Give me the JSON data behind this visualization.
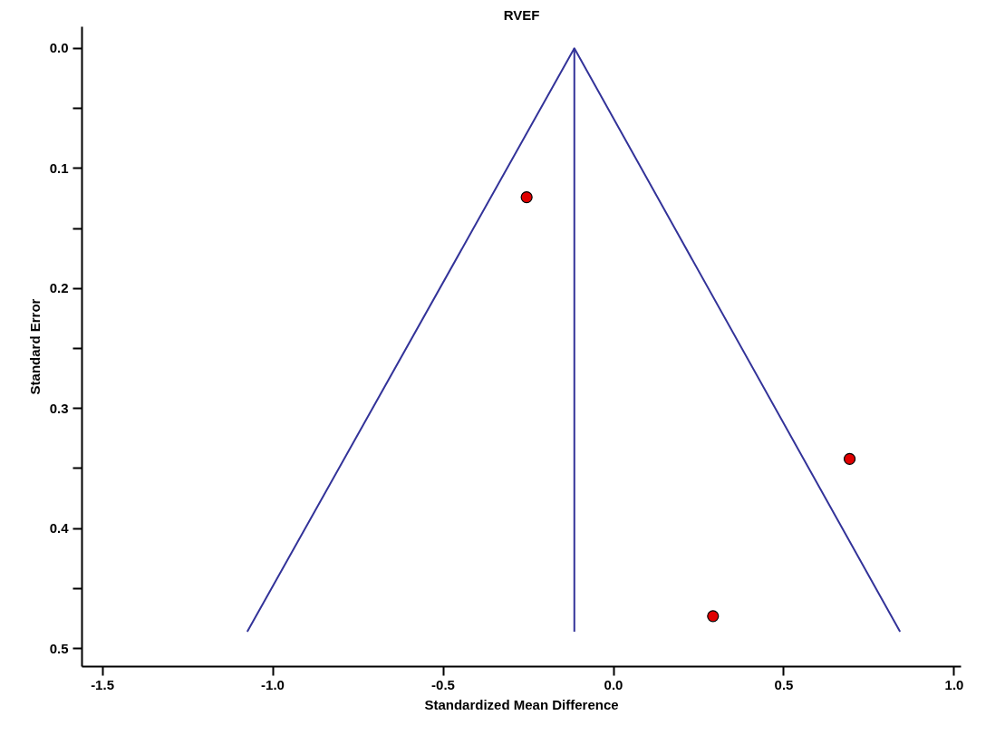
{
  "chart_data": {
    "type": "scatter",
    "title": "RVEF",
    "xlabel": "Standardized Mean Difference",
    "ylabel": "Standard Error",
    "xlim": [
      -1.56,
      1.02
    ],
    "ylim": [
      0.515,
      -0.018
    ],
    "xticks": [
      {
        "value": -1.5,
        "label": "-1.5"
      },
      {
        "value": -1.0,
        "label": "-1.0"
      },
      {
        "value": -0.5,
        "label": "-0.5"
      },
      {
        "value": 0,
        "label": "0.0"
      },
      0.5,
      {
        "value": 1.0,
        "label": "1.0"
      }
    ],
    "yticks": [
      {
        "value": 0,
        "label": "0.0"
      },
      {
        "value": 0.05,
        "label": null
      },
      0.1,
      {
        "value": 0.15,
        "label": null
      },
      0.2,
      {
        "value": 0.25,
        "label": null
      },
      0.3,
      {
        "value": 0.35,
        "label": null
      },
      0.4,
      {
        "value": 0.45,
        "label": null
      },
      0.5
    ],
    "grid": false,
    "series": [
      {
        "type": "line",
        "color": "#333399",
        "marker": "none",
        "line_style": "solid",
        "x": [
          -1.075,
          -0.115,
          0.841
        ],
        "values": [
          0.486,
          0,
          0.486
        ]
      },
      {
        "type": "line",
        "color": "#333399",
        "marker": "none",
        "line_style": "solid",
        "x": [
          -0.115,
          -0.115
        ],
        "values": [
          0,
          0.486
        ]
      },
      {
        "color": "#e00000",
        "marker": "circle",
        "x": [
          -0.255,
          0.693,
          0.292
        ],
        "values": [
          0.124,
          0.342,
          0.473
        ]
      }
    ]
  }
}
